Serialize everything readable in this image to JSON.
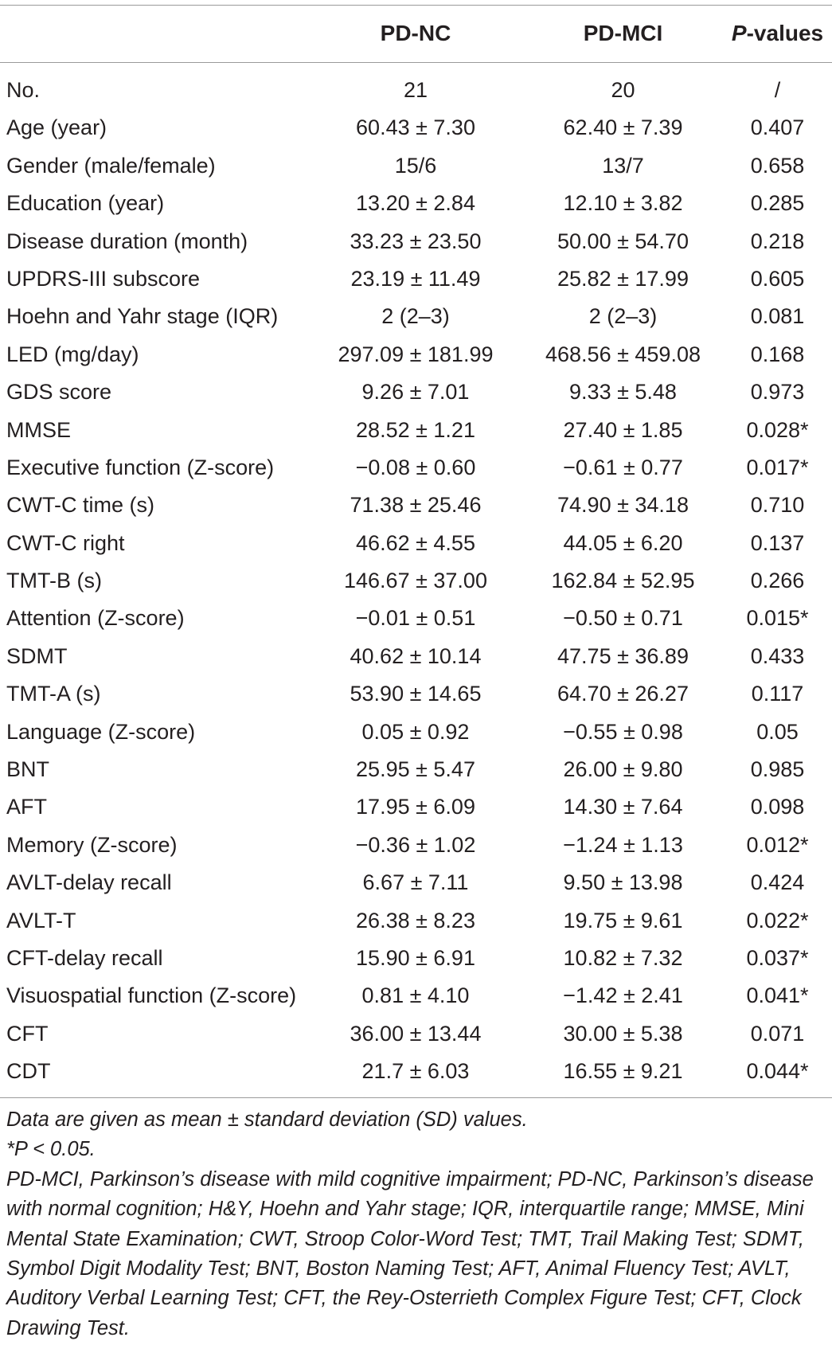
{
  "table": {
    "headers": {
      "col1": "PD-NC",
      "col2": "PD-MCI",
      "col3_italic": "P",
      "col3_rest": "-values"
    },
    "rows": [
      {
        "label": "No.",
        "pd_nc": "21",
        "pd_mci": "20",
        "p": "/"
      },
      {
        "label": "Age (year)",
        "pd_nc": "60.43 ± 7.30",
        "pd_mci": "62.40 ± 7.39",
        "p": "0.407"
      },
      {
        "label": "Gender (male/female)",
        "pd_nc": "15/6",
        "pd_mci": "13/7",
        "p": "0.658"
      },
      {
        "label": "Education (year)",
        "pd_nc": "13.20 ± 2.84",
        "pd_mci": "12.10 ± 3.82",
        "p": "0.285"
      },
      {
        "label": "Disease duration (month)",
        "pd_nc": "33.23 ± 23.50",
        "pd_mci": "50.00 ± 54.70",
        "p": "0.218"
      },
      {
        "label": "UPDRS-III subscore",
        "pd_nc": "23.19 ± 11.49",
        "pd_mci": "25.82 ± 17.99",
        "p": "0.605"
      },
      {
        "label": "Hoehn and Yahr stage (IQR)",
        "pd_nc": "2 (2–3)",
        "pd_mci": "2 (2–3)",
        "p": "0.081"
      },
      {
        "label": "LED (mg/day)",
        "pd_nc": "297.09 ± 181.99",
        "pd_mci": "468.56 ± 459.08",
        "p": "0.168"
      },
      {
        "label": "GDS score",
        "pd_nc": "9.26 ± 7.01",
        "pd_mci": "9.33 ± 5.48",
        "p": "0.973"
      },
      {
        "label": "MMSE",
        "pd_nc": "28.52 ± 1.21",
        "pd_mci": "27.40 ± 1.85",
        "p": "0.028*"
      },
      {
        "label": "Executive function (Z-score)",
        "pd_nc": "−0.08 ± 0.60",
        "pd_mci": "−0.61 ± 0.77",
        "p": "0.017*"
      },
      {
        "label": "CWT-C time (s)",
        "pd_nc": "71.38 ± 25.46",
        "pd_mci": "74.90 ± 34.18",
        "p": "0.710"
      },
      {
        "label": "CWT-C right",
        "pd_nc": "46.62 ± 4.55",
        "pd_mci": "44.05 ± 6.20",
        "p": "0.137"
      },
      {
        "label": "TMT-B (s)",
        "pd_nc": "146.67 ± 37.00",
        "pd_mci": "162.84 ± 52.95",
        "p": "0.266"
      },
      {
        "label": "Attention (Z-score)",
        "pd_nc": "−0.01 ± 0.51",
        "pd_mci": "−0.50 ± 0.71",
        "p": "0.015*"
      },
      {
        "label": "SDMT",
        "pd_nc": "40.62 ± 10.14",
        "pd_mci": "47.75 ± 36.89",
        "p": "0.433"
      },
      {
        "label": "TMT-A (s)",
        "pd_nc": "53.90 ± 14.65",
        "pd_mci": "64.70 ± 26.27",
        "p": "0.117"
      },
      {
        "label": "Language (Z-score)",
        "pd_nc": "0.05 ± 0.92",
        "pd_mci": "−0.55 ± 0.98",
        "p": "0.05"
      },
      {
        "label": "BNT",
        "pd_nc": "25.95 ± 5.47",
        "pd_mci": "26.00 ± 9.80",
        "p": "0.985"
      },
      {
        "label": "AFT",
        "pd_nc": "17.95 ± 6.09",
        "pd_mci": "14.30 ± 7.64",
        "p": "0.098"
      },
      {
        "label": "Memory (Z-score)",
        "pd_nc": "−0.36 ± 1.02",
        "pd_mci": "−1.24 ± 1.13",
        "p": "0.012*"
      },
      {
        "label": "AVLT-delay recall",
        "pd_nc": "6.67 ± 7.11",
        "pd_mci": "9.50 ± 13.98",
        "p": "0.424"
      },
      {
        "label": "AVLT-T",
        "pd_nc": "26.38 ± 8.23",
        "pd_mci": "19.75 ± 9.61",
        "p": "0.022*"
      },
      {
        "label": "CFT-delay recall",
        "pd_nc": "15.90 ± 6.91",
        "pd_mci": "10.82 ± 7.32",
        "p": "0.037*"
      },
      {
        "label": "Visuospatial function (Z-score)",
        "pd_nc": "0.81 ± 4.10",
        "pd_mci": "−1.42 ± 2.41",
        "p": "0.041*"
      },
      {
        "label": "CFT",
        "pd_nc": "36.00 ± 13.44",
        "pd_mci": "30.00 ± 5.38",
        "p": "0.071"
      },
      {
        "label": "CDT",
        "pd_nc": "21.7 ± 6.03",
        "pd_mci": "16.55 ± 9.21",
        "p": "0.044*"
      }
    ]
  },
  "footnotes": {
    "line1": "Data are given as mean ± standard deviation (SD) values.",
    "line2": "*P < 0.05.",
    "line3": "PD-MCI, Parkinson’s disease with mild cognitive impairment; PD-NC, Parkinson’s disease with normal cognition; H&Y, Hoehn and Yahr stage; IQR, interquartile range; MMSE, Mini Mental State Examination; CWT, Stroop Color-Word Test; TMT, Trail Making Test; SDMT, Symbol Digit Modality Test; BNT, Boston Naming Test; AFT, Animal Fluency Test; AVLT, Auditory Verbal Learning Test; CFT, the Rey-Osterrieth Complex Figure Test; CFT, Clock Drawing Test."
  }
}
